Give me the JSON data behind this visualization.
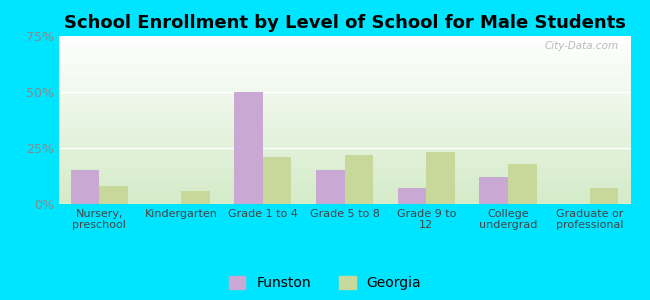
{
  "title": "School Enrollment by Level of School for Male Students",
  "categories": [
    "Nursery,\npreschool",
    "Kindergarten",
    "Grade 1 to 4",
    "Grade 5 to 8",
    "Grade 9 to\n12",
    "College\nundergrad",
    "Graduate or\nprofessional"
  ],
  "funston_values": [
    15,
    0,
    50,
    15,
    7,
    12,
    0
  ],
  "georgia_values": [
    8,
    6,
    21,
    22,
    23,
    18,
    7
  ],
  "funston_color": "#c9a8d4",
  "georgia_color": "#c8d89a",
  "ylim": [
    0,
    75
  ],
  "yticks": [
    0,
    25,
    50,
    75
  ],
  "ytick_labels": [
    "0%",
    "25%",
    "50%",
    "75%"
  ],
  "background_color": "#00e5ff",
  "title_fontsize": 13,
  "legend_labels": [
    "Funston",
    "Georgia"
  ],
  "watermark": "City-Data.com"
}
